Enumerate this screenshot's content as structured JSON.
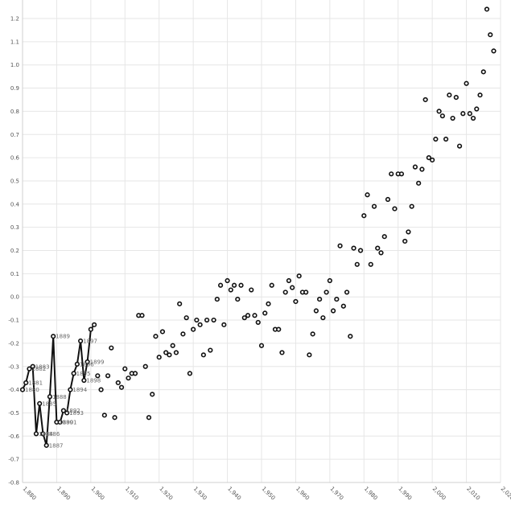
{
  "chart_data": {
    "type": "scatter",
    "title": "",
    "xlabel": "",
    "ylabel": "",
    "xlim": [
      1880,
      2020
    ],
    "ylim": [
      -0.8,
      1.25
    ],
    "grid": true,
    "x_ticks": [
      "1,880",
      "1,890",
      "1,900",
      "1,910",
      "1,920",
      "1,930",
      "1,940",
      "1,950",
      "1,960",
      "1,970",
      "1,980",
      "1,990",
      "2,000",
      "2,010",
      "2,020"
    ],
    "x_tick_values": [
      1880,
      1890,
      1900,
      1910,
      1920,
      1930,
      1940,
      1950,
      1960,
      1970,
      1980,
      1990,
      2000,
      2010,
      2020
    ],
    "y_ticks": [
      "1.2",
      "1.1",
      "1.0",
      "0.9",
      "0.8",
      "0.7",
      "0.6",
      "0.5",
      "0.4",
      "0.3",
      "0.2",
      "0.1",
      "0.0",
      "-0.1",
      "-0.2",
      "-0.3",
      "-0.4",
      "-0.5",
      "-0.6",
      "-0.7",
      "-0.8"
    ],
    "y_tick_values": [
      1.2,
      1.1,
      1.0,
      0.9,
      0.8,
      0.7,
      0.6,
      0.5,
      0.4,
      0.3,
      0.2,
      0.1,
      0.0,
      -0.1,
      -0.2,
      -0.3,
      -0.4,
      -0.5,
      -0.6,
      -0.7,
      -0.8
    ],
    "series": [
      {
        "points": [
          [
            1880,
            -0.4
          ],
          [
            1881,
            -0.37
          ],
          [
            1882,
            -0.31
          ],
          [
            1883,
            -0.3
          ],
          [
            1884,
            -0.59
          ],
          [
            1885,
            -0.46
          ],
          [
            1886,
            -0.59
          ],
          [
            1887,
            -0.64
          ],
          [
            1888,
            -0.43
          ],
          [
            1889,
            -0.17
          ],
          [
            1890,
            -0.54
          ],
          [
            1891,
            -0.54
          ],
          [
            1892,
            -0.49
          ],
          [
            1893,
            -0.5
          ],
          [
            1894,
            -0.4
          ],
          [
            1895,
            -0.33
          ],
          [
            1896,
            -0.29
          ],
          [
            1897,
            -0.19
          ],
          [
            1898,
            -0.36
          ],
          [
            1899,
            -0.28
          ],
          [
            1900,
            -0.14
          ],
          [
            1901,
            -0.12
          ],
          [
            1902,
            -0.34
          ],
          [
            1903,
            -0.4
          ],
          [
            1904,
            -0.51
          ],
          [
            1905,
            -0.34
          ],
          [
            1906,
            -0.22
          ],
          [
            1907,
            -0.52
          ],
          [
            1908,
            -0.37
          ],
          [
            1909,
            -0.39
          ],
          [
            1910,
            -0.31
          ],
          [
            1911,
            -0.35
          ],
          [
            1912,
            -0.33
          ],
          [
            1913,
            -0.33
          ],
          [
            1914,
            -0.08
          ],
          [
            1915,
            -0.08
          ],
          [
            1916,
            -0.3
          ],
          [
            1917,
            -0.52
          ],
          [
            1918,
            -0.42
          ],
          [
            1919,
            -0.17
          ],
          [
            1920,
            -0.26
          ],
          [
            1921,
            -0.15
          ],
          [
            1922,
            -0.24
          ],
          [
            1923,
            -0.25
          ],
          [
            1924,
            -0.21
          ],
          [
            1925,
            -0.24
          ],
          [
            1926,
            -0.03
          ],
          [
            1927,
            -0.16
          ],
          [
            1928,
            -0.09
          ],
          [
            1929,
            -0.33
          ],
          [
            1930,
            -0.14
          ],
          [
            1931,
            -0.1
          ],
          [
            1932,
            -0.12
          ],
          [
            1933,
            -0.25
          ],
          [
            1934,
            -0.1
          ],
          [
            1935,
            -0.23
          ],
          [
            1936,
            -0.1
          ],
          [
            1937,
            -0.01
          ],
          [
            1938,
            0.05
          ],
          [
            1939,
            -0.12
          ],
          [
            1940,
            0.07
          ],
          [
            1941,
            0.03
          ],
          [
            1942,
            0.05
          ],
          [
            1943,
            -0.01
          ],
          [
            1944,
            0.05
          ],
          [
            1945,
            -0.09
          ],
          [
            1946,
            -0.08
          ],
          [
            1947,
            0.03
          ],
          [
            1948,
            -0.08
          ],
          [
            1949,
            -0.11
          ],
          [
            1950,
            -0.21
          ],
          [
            1951,
            -0.07
          ],
          [
            1952,
            -0.03
          ],
          [
            1953,
            0.05
          ],
          [
            1954,
            -0.14
          ],
          [
            1955,
            -0.14
          ],
          [
            1956,
            -0.24
          ],
          [
            1957,
            0.02
          ],
          [
            1958,
            0.07
          ],
          [
            1959,
            0.04
          ],
          [
            1960,
            -0.02
          ],
          [
            1961,
            0.09
          ],
          [
            1962,
            0.02
          ],
          [
            1963,
            0.02
          ],
          [
            1964,
            -0.25
          ],
          [
            1965,
            -0.16
          ],
          [
            1966,
            -0.06
          ],
          [
            1967,
            -0.01
          ],
          [
            1968,
            -0.09
          ],
          [
            1969,
            0.02
          ],
          [
            1970,
            0.07
          ],
          [
            1971,
            -0.06
          ],
          [
            1972,
            -0.01
          ],
          [
            1973,
            0.22
          ],
          [
            1974,
            -0.04
          ],
          [
            1975,
            0.02
          ],
          [
            1976,
            -0.17
          ],
          [
            1977,
            0.21
          ],
          [
            1978,
            0.14
          ],
          [
            1979,
            0.2
          ],
          [
            1980,
            0.35
          ],
          [
            1981,
            0.44
          ],
          [
            1982,
            0.14
          ],
          [
            1983,
            0.39
          ],
          [
            1984,
            0.21
          ],
          [
            1985,
            0.19
          ],
          [
            1986,
            0.26
          ],
          [
            1987,
            0.42
          ],
          [
            1988,
            0.53
          ],
          [
            1989,
            0.38
          ],
          [
            1990,
            0.53
          ],
          [
            1991,
            0.53
          ],
          [
            1992,
            0.24
          ],
          [
            1993,
            0.28
          ],
          [
            1994,
            0.39
          ],
          [
            1995,
            0.56
          ],
          [
            1996,
            0.49
          ],
          [
            1997,
            0.55
          ],
          [
            1998,
            0.85
          ],
          [
            1999,
            0.6
          ],
          [
            2000,
            0.59
          ],
          [
            2001,
            0.68
          ],
          [
            2002,
            0.8
          ],
          [
            2003,
            0.78
          ],
          [
            2004,
            0.68
          ],
          [
            2005,
            0.87
          ],
          [
            2006,
            0.77
          ],
          [
            2007,
            0.86
          ],
          [
            2008,
            0.65
          ],
          [
            2009,
            0.79
          ],
          [
            2010,
            0.92
          ],
          [
            2011,
            0.79
          ],
          [
            2012,
            0.77
          ],
          [
            2013,
            0.81
          ],
          [
            2014,
            0.87
          ],
          [
            2015,
            0.97
          ],
          [
            2016,
            1.24
          ],
          [
            2017,
            1.13
          ],
          [
            2018,
            1.06
          ]
        ]
      }
    ],
    "connected_range": [
      1880,
      1901
    ],
    "labeled_points": [
      {
        "year": "1880",
        "x": 1880,
        "y": -0.4
      },
      {
        "year": "1881",
        "x": 1881,
        "y": -0.37
      },
      {
        "year": "1882",
        "x": 1882,
        "y": -0.31
      },
      {
        "year": "1883",
        "x": 1883,
        "y": -0.3
      },
      {
        "year": "1884",
        "x": 1884,
        "y": -0.59
      },
      {
        "year": "1885",
        "x": 1885,
        "y": -0.46
      },
      {
        "year": "1886",
        "x": 1886,
        "y": -0.59
      },
      {
        "year": "1887",
        "x": 1887,
        "y": -0.64
      },
      {
        "year": "1888",
        "x": 1888,
        "y": -0.43
      },
      {
        "year": "1889",
        "x": 1889,
        "y": -0.17
      },
      {
        "year": "1890",
        "x": 1890,
        "y": -0.54
      },
      {
        "year": "1891",
        "x": 1891,
        "y": -0.54
      },
      {
        "year": "1892",
        "x": 1892,
        "y": -0.49
      },
      {
        "year": "1893",
        "x": 1893,
        "y": -0.5
      },
      {
        "year": "1894",
        "x": 1894,
        "y": -0.4
      },
      {
        "year": "1895",
        "x": 1895,
        "y": -0.33
      },
      {
        "year": "1896",
        "x": 1896,
        "y": -0.29
      },
      {
        "year": "1897",
        "x": 1897,
        "y": -0.19
      },
      {
        "year": "1898",
        "x": 1898,
        "y": -0.36
      },
      {
        "year": "1899",
        "x": 1899,
        "y": -0.28
      }
    ]
  }
}
